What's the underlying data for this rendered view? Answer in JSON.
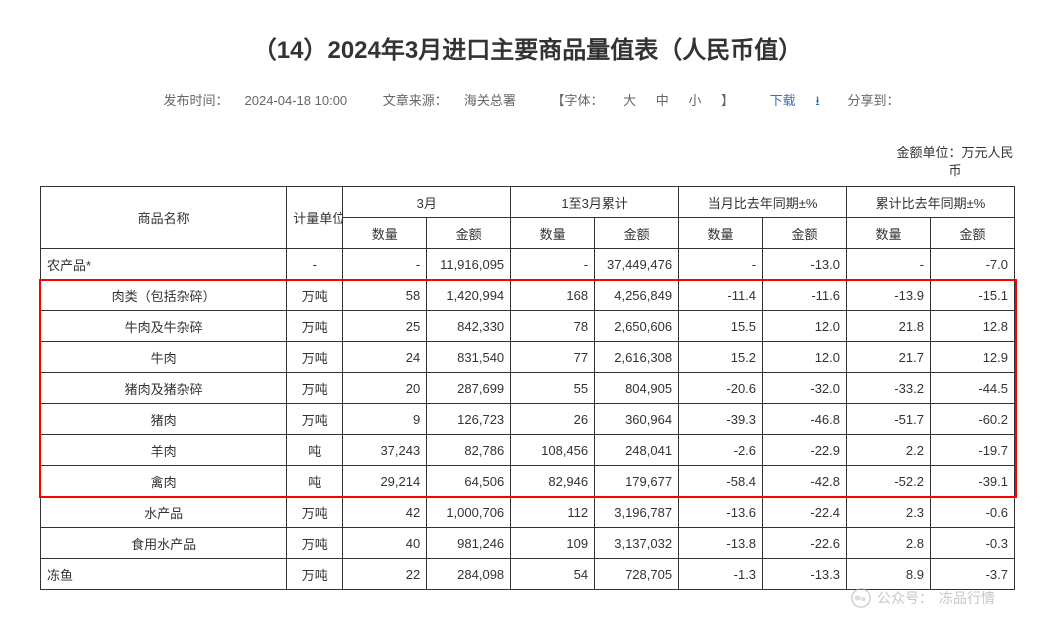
{
  "title": "（14）2024年3月进口主要商品量值表（人民币值）",
  "meta": {
    "publish_label": "发布时间：",
    "publish_time": "2024-04-18 10:00",
    "source_label": "文章来源：",
    "source": "海关总署",
    "font_label_prefix": "【字体：",
    "font_large": "大",
    "font_medium": "中",
    "font_small": "小",
    "font_label_suffix": "】",
    "download_label": "下载",
    "share_label": "分享到："
  },
  "unit_note": "金额单位：万元人民币",
  "headers": {
    "product_name": "商品名称",
    "measure_unit": "计量单位",
    "month": "3月",
    "cumulative": "1至3月累计",
    "yoy_month": "当月比去年同期±%",
    "yoy_cumulative": "累计比去年同期±%",
    "quantity": "数量",
    "amount": "金额"
  },
  "rows": [
    {
      "name": "农产品*",
      "unit": "-",
      "m_qty": "-",
      "m_amt": "11,916,095",
      "c_qty": "-",
      "c_amt": "37,449,476",
      "ym_qty": "-",
      "ym_amt": "-13.0",
      "yc_qty": "-",
      "yc_amt": "-7.0",
      "hl": false
    },
    {
      "name": "肉类（包括杂碎）",
      "unit": "万吨",
      "m_qty": "58",
      "m_amt": "1,420,994",
      "c_qty": "168",
      "c_amt": "4,256,849",
      "ym_qty": "-11.4",
      "ym_amt": "-11.6",
      "yc_qty": "-13.9",
      "yc_amt": "-15.1",
      "hl": true
    },
    {
      "name": "牛肉及牛杂碎",
      "unit": "万吨",
      "m_qty": "25",
      "m_amt": "842,330",
      "c_qty": "78",
      "c_amt": "2,650,606",
      "ym_qty": "15.5",
      "ym_amt": "12.0",
      "yc_qty": "21.8",
      "yc_amt": "12.8",
      "hl": true
    },
    {
      "name": "牛肉",
      "unit": "万吨",
      "m_qty": "24",
      "m_amt": "831,540",
      "c_qty": "77",
      "c_amt": "2,616,308",
      "ym_qty": "15.2",
      "ym_amt": "12.0",
      "yc_qty": "21.7",
      "yc_amt": "12.9",
      "hl": true
    },
    {
      "name": "猪肉及猪杂碎",
      "unit": "万吨",
      "m_qty": "20",
      "m_amt": "287,699",
      "c_qty": "55",
      "c_amt": "804,905",
      "ym_qty": "-20.6",
      "ym_amt": "-32.0",
      "yc_qty": "-33.2",
      "yc_amt": "-44.5",
      "hl": true
    },
    {
      "name": "猪肉",
      "unit": "万吨",
      "m_qty": "9",
      "m_amt": "126,723",
      "c_qty": "26",
      "c_amt": "360,964",
      "ym_qty": "-39.3",
      "ym_amt": "-46.8",
      "yc_qty": "-51.7",
      "yc_amt": "-60.2",
      "hl": true
    },
    {
      "name": "羊肉",
      "unit": "吨",
      "m_qty": "37,243",
      "m_amt": "82,786",
      "c_qty": "108,456",
      "c_amt": "248,041",
      "ym_qty": "-2.6",
      "ym_amt": "-22.9",
      "yc_qty": "2.2",
      "yc_amt": "-19.7",
      "hl": true
    },
    {
      "name": "禽肉",
      "unit": "吨",
      "m_qty": "29,214",
      "m_amt": "64,506",
      "c_qty": "82,946",
      "c_amt": "179,677",
      "ym_qty": "-58.4",
      "ym_amt": "-42.8",
      "yc_qty": "-52.2",
      "yc_amt": "-39.1",
      "hl": true
    },
    {
      "name": "水产品",
      "unit": "万吨",
      "m_qty": "42",
      "m_amt": "1,000,706",
      "c_qty": "112",
      "c_amt": "3,196,787",
      "ym_qty": "-13.6",
      "ym_amt": "-22.4",
      "yc_qty": "2.3",
      "yc_amt": "-0.6",
      "hl": false
    },
    {
      "name": "食用水产品",
      "unit": "万吨",
      "m_qty": "40",
      "m_amt": "981,246",
      "c_qty": "109",
      "c_amt": "3,137,032",
      "ym_qty": "-13.8",
      "ym_amt": "-22.6",
      "yc_qty": "2.8",
      "yc_amt": "-0.3",
      "hl": false
    },
    {
      "name": "冻鱼",
      "unit": "万吨",
      "m_qty": "22",
      "m_amt": "284,098",
      "c_qty": "54",
      "c_amt": "728,705",
      "ym_qty": "-1.3",
      "ym_amt": "-13.3",
      "yc_qty": "8.9",
      "yc_amt": "-3.7",
      "hl": false
    }
  ],
  "watermark": {
    "label1": "公众号：",
    "label2": "冻品行情"
  },
  "styling": {
    "title_fontsize": 24,
    "meta_fontsize": 13,
    "cell_fontsize": 13,
    "border_color": "#333333",
    "highlight_color": "#ff0000",
    "link_color": "#3a6eb5",
    "text_color": "#333333",
    "meta_text_color": "#666666",
    "background_color": "#ffffff",
    "watermark_color": "#b0b0b0"
  }
}
